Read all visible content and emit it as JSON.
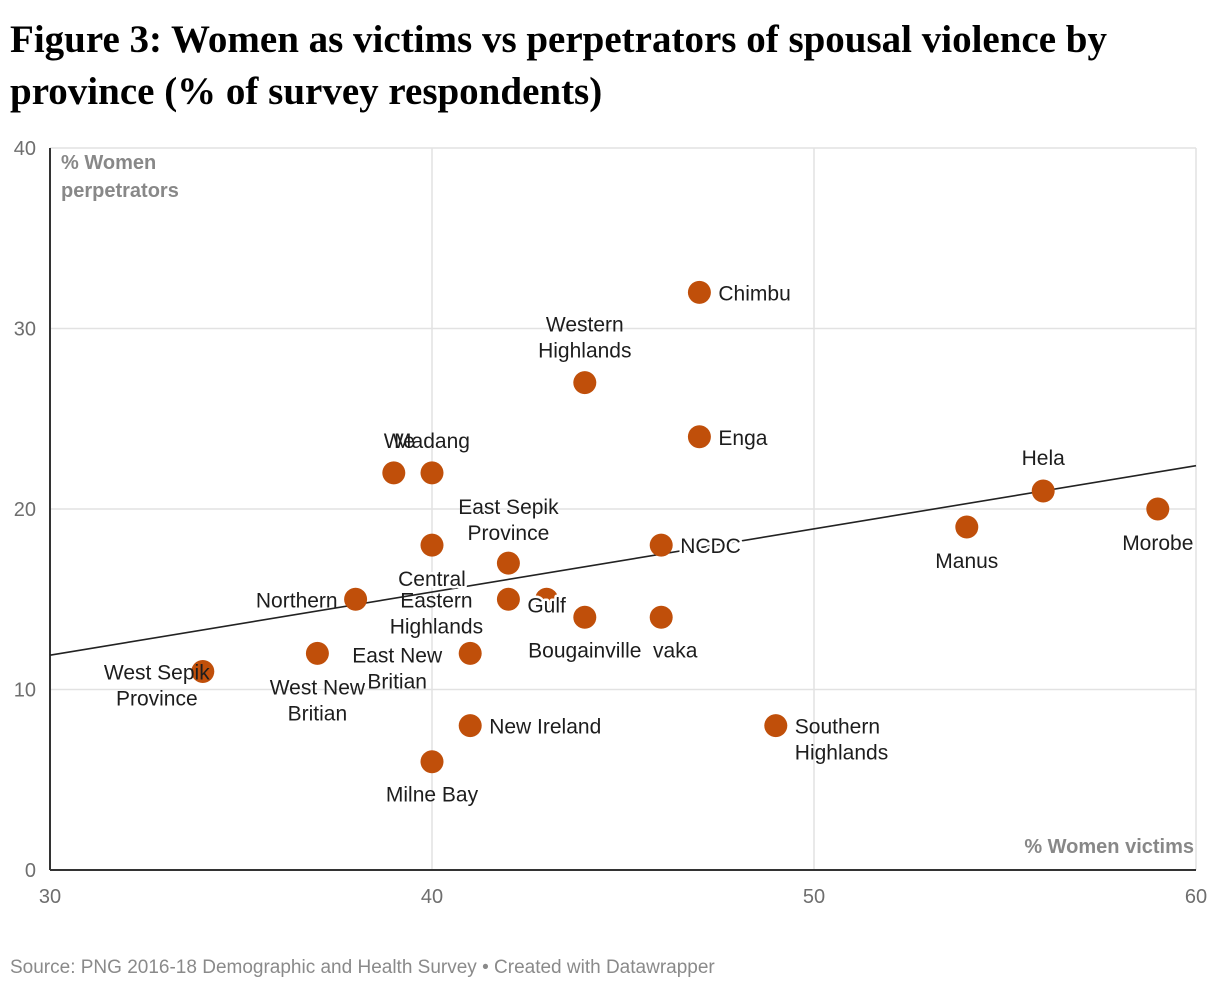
{
  "title": "Figure 3: Women as victims vs perpetrators of spousal violence by province (% of survey respondents)",
  "footer": "Source: PNG 2016-18 Demographic and Health Survey • Created with Datawrapper",
  "colors": {
    "point": "#c04f0a",
    "grid": "#e2e2e2",
    "axis": "#333333",
    "trend": "#222222"
  },
  "chart_data": {
    "type": "scatter",
    "xlabel": "% Women victims",
    "ylabel": "% Women perpetrators",
    "xlim": [
      30,
      60
    ],
    "ylim": [
      0,
      40
    ],
    "xticks": [
      "30",
      "40",
      "50",
      "60"
    ],
    "yticks": [
      "0",
      "10",
      "20",
      "30",
      "40"
    ],
    "grid": true,
    "trendline": {
      "x": [
        30,
        60
      ],
      "y": [
        11.9,
        22.4
      ]
    },
    "points": [
      {
        "label": "Chimbu",
        "x": 47,
        "y": 32
      },
      {
        "label": "Western Highlands",
        "x": 44,
        "y": 27
      },
      {
        "label": "Enga",
        "x": 47,
        "y": 24
      },
      {
        "label": "We",
        "x": 39,
        "y": 22
      },
      {
        "label": "Madang",
        "x": 40,
        "y": 22
      },
      {
        "label": "Hela",
        "x": 56,
        "y": 21
      },
      {
        "label": "Morobe",
        "x": 59,
        "y": 20
      },
      {
        "label": "Manus",
        "x": 54,
        "y": 19
      },
      {
        "label": "Central",
        "x": 40,
        "y": 18
      },
      {
        "label": "NCDC",
        "x": 46,
        "y": 18
      },
      {
        "label": "East Sepik Province",
        "x": 42,
        "y": 17
      },
      {
        "label": "Gulf",
        "x": 43,
        "y": 15
      },
      {
        "label": "Eastern Highlands",
        "x": 42,
        "y": 15
      },
      {
        "label": "Northern",
        "x": 38,
        "y": 15
      },
      {
        "label": "Bougainville",
        "x": 44,
        "y": 14
      },
      {
        "label": "vaka",
        "x": 46,
        "y": 14
      },
      {
        "label": "East New Britian",
        "x": 41,
        "y": 12
      },
      {
        "label": "West New Britian",
        "x": 37,
        "y": 12
      },
      {
        "label": "West Sepik Province",
        "x": 34,
        "y": 11
      },
      {
        "label": "New Ireland",
        "x": 41,
        "y": 8
      },
      {
        "label": "Southern Highlands",
        "x": 49,
        "y": 8
      },
      {
        "label": "Milne Bay",
        "x": 40,
        "y": 6
      }
    ]
  }
}
